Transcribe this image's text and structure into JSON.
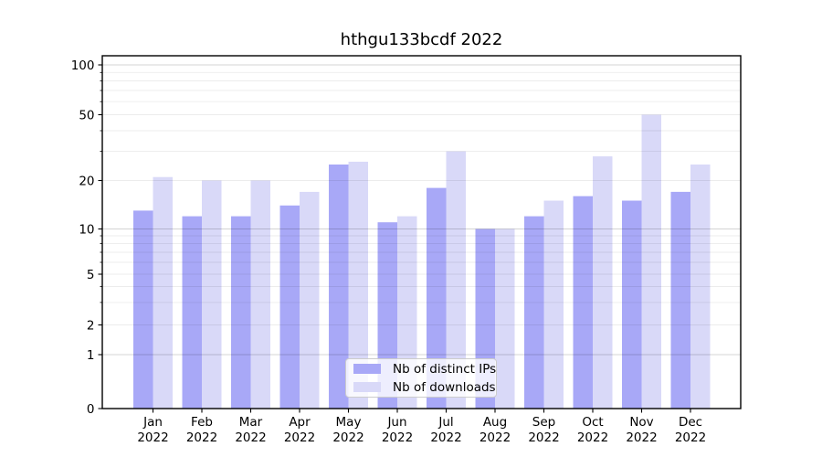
{
  "chart_data": {
    "type": "bar",
    "title": "hthgu133bcdf 2022",
    "categories": [
      "Jan 2022",
      "Feb 2022",
      "Mar 2022",
      "Apr 2022",
      "May 2022",
      "Jun 2022",
      "Jul 2022",
      "Aug 2022",
      "Sep 2022",
      "Oct 2022",
      "Nov 2022",
      "Dec 2022"
    ],
    "x_tick_top_lines": [
      "Jan",
      "Feb",
      "Mar",
      "Apr",
      "May",
      "Jun",
      "Jul",
      "Aug",
      "Sep",
      "Oct",
      "Nov",
      "Dec"
    ],
    "x_tick_bottom_line": "2022",
    "series": [
      {
        "name": "Nb of distinct IPs",
        "color": "#a8a8f7",
        "values": [
          13,
          12,
          12,
          14,
          25,
          11,
          18,
          10,
          12,
          16,
          15,
          17
        ]
      },
      {
        "name": "Nb of downloads",
        "color": "#d9d9f8",
        "values": [
          21,
          20,
          20,
          17,
          26,
          12,
          30,
          10,
          15,
          28,
          50,
          25
        ]
      }
    ],
    "yaxis": {
      "scale": "symlog",
      "ylim": [
        0,
        100
      ],
      "tick_values": [
        0,
        1,
        2,
        5,
        10,
        20,
        50,
        100
      ],
      "tick_labels": [
        "0",
        "1",
        "2",
        "5",
        "10",
        "20",
        "50",
        "100"
      ],
      "major_gridlines": [
        1,
        10,
        100
      ],
      "minor_gridlines": [
        2,
        3,
        4,
        5,
        6,
        7,
        8,
        9,
        20,
        30,
        40,
        50,
        60,
        70,
        80,
        90
      ],
      "grid": true
    },
    "legend": {
      "position": "lower center",
      "entries": [
        "Nb of distinct IPs",
        "Nb of downloads"
      ]
    }
  },
  "colors": {
    "background": "#ffffff",
    "bar_distinct_ips": "#a8a8f7",
    "bar_downloads": "#d9d9f8",
    "axis": "#000000",
    "grid_minor": "#ebebeb",
    "grid_major": "#d2d2d2",
    "legend_border": "#cccccc",
    "text": "#000000"
  }
}
